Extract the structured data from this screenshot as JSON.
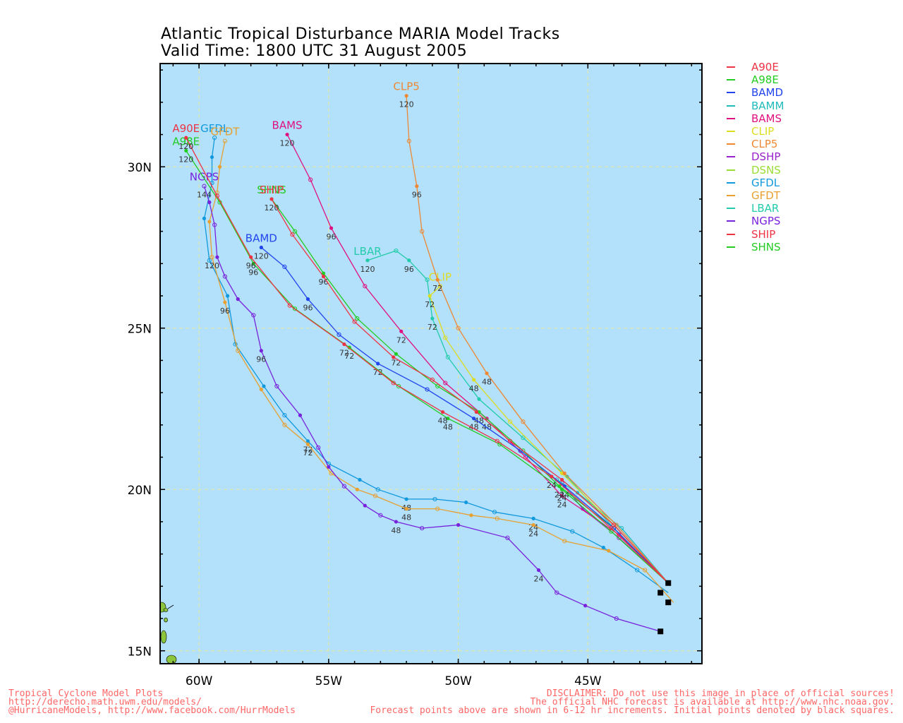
{
  "title": {
    "line1": "Atlantic Tropical Disturbance MARIA Model Tracks",
    "line2": "Valid Time: 1800 UTC 31 August 2005"
  },
  "colors": {
    "ocean": "#b3e0fa",
    "land": "#8cc43c",
    "grid": "#e8e8a0",
    "frame": "#000000",
    "footer": "#ff6666"
  },
  "axes": {
    "lon_ticks": [
      "60W",
      "55W",
      "50W",
      "45W"
    ],
    "lat_ticks": [
      "30N",
      "25N",
      "20N",
      "15N"
    ]
  },
  "legend": [
    {
      "name": "A90E",
      "color": "#ee3344"
    },
    {
      "name": "A98E",
      "color": "#22cc22"
    },
    {
      "name": "BAMD",
      "color": "#2244ee"
    },
    {
      "name": "BAMM",
      "color": "#22bbbb"
    },
    {
      "name": "BAMS",
      "color": "#e01080"
    },
    {
      "name": "CLIP",
      "color": "#dddd22"
    },
    {
      "name": "CLP5",
      "color": "#ee8833"
    },
    {
      "name": "DSHP",
      "color": "#9922cc"
    },
    {
      "name": "DSNS",
      "color": "#99dd33"
    },
    {
      "name": "GFDL",
      "color": "#1199dd"
    },
    {
      "name": "GFDT",
      "color": "#e8a030"
    },
    {
      "name": "LBAR",
      "color": "#22ccaa"
    },
    {
      "name": "NGPS",
      "color": "#7722dd"
    },
    {
      "name": "SHIP",
      "color": "#ee3344"
    },
    {
      "name": "SHNS",
      "color": "#22cc22"
    }
  ],
  "tracks": [
    {
      "name": "GFDL",
      "color": "#1199dd",
      "label": "GFDL",
      "points": [
        [
          41.9,
          16.8
        ],
        [
          43.1,
          17.5
        ],
        [
          44.4,
          18.2
        ],
        [
          45.6,
          18.7
        ],
        [
          47.1,
          19.1
        ],
        [
          48.6,
          19.3
        ],
        [
          49.7,
          19.6
        ],
        [
          50.9,
          19.7
        ],
        [
          52.0,
          19.7
        ],
        [
          53.1,
          20.0
        ],
        [
          53.8,
          20.3
        ],
        [
          55.0,
          20.8
        ],
        [
          55.8,
          21.5
        ],
        [
          56.7,
          22.3
        ],
        [
          57.5,
          23.2
        ],
        [
          58.6,
          24.5
        ],
        [
          58.9,
          26.0
        ],
        [
          59.6,
          27.1
        ],
        [
          59.8,
          28.4
        ],
        [
          59.5,
          29.5
        ],
        [
          59.5,
          30.3
        ],
        [
          59.4,
          30.9
        ]
      ],
      "hours": [
        {
          "i": 4,
          "h": "24"
        },
        {
          "i": 8,
          "h": "48"
        },
        {
          "i": 12,
          "h": "72"
        }
      ]
    },
    {
      "name": "GFDT",
      "color": "#e8a030",
      "label": "GFDT",
      "points": [
        [
          41.7,
          16.5
        ],
        [
          42.8,
          17.5
        ],
        [
          44.2,
          18.1
        ],
        [
          45.9,
          18.4
        ],
        [
          47.1,
          18.9
        ],
        [
          48.5,
          19.1
        ],
        [
          49.5,
          19.2
        ],
        [
          50.8,
          19.4
        ],
        [
          52.0,
          19.4
        ],
        [
          53.2,
          19.8
        ],
        [
          53.9,
          20.0
        ],
        [
          54.9,
          20.5
        ],
        [
          55.8,
          21.4
        ],
        [
          56.7,
          22.0
        ],
        [
          57.6,
          23.1
        ],
        [
          58.5,
          24.3
        ],
        [
          59.0,
          25.8
        ],
        [
          59.5,
          27.2
        ],
        [
          59.6,
          28.3
        ],
        [
          59.3,
          29.2
        ],
        [
          59.2,
          30.0
        ],
        [
          59.0,
          30.8
        ]
      ],
      "hours": [
        {
          "i": 4,
          "h": "24"
        },
        {
          "i": 8,
          "h": "48"
        },
        {
          "i": 12,
          "h": "72"
        },
        {
          "i": 16,
          "h": "96"
        },
        {
          "i": 17,
          "h": "120"
        }
      ]
    },
    {
      "name": "NGPS",
      "color": "#7722dd",
      "label": "NGPS",
      "points": [
        [
          42.2,
          15.6
        ],
        [
          43.9,
          16.0
        ],
        [
          45.1,
          16.4
        ],
        [
          46.2,
          16.8
        ],
        [
          46.9,
          17.5
        ],
        [
          48.1,
          18.5
        ],
        [
          50.0,
          18.9
        ],
        [
          51.4,
          18.8
        ],
        [
          52.4,
          19.0
        ],
        [
          53.0,
          19.2
        ],
        [
          53.6,
          19.5
        ],
        [
          54.4,
          20.1
        ],
        [
          55.0,
          20.7
        ],
        [
          55.4,
          21.3
        ],
        [
          56.1,
          22.3
        ],
        [
          57.0,
          23.2
        ],
        [
          57.6,
          24.3
        ],
        [
          57.9,
          25.4
        ],
        [
          58.5,
          25.9
        ],
        [
          59.0,
          26.6
        ],
        [
          59.3,
          27.2
        ],
        [
          59.4,
          28.2
        ],
        [
          59.6,
          28.9
        ],
        [
          59.8,
          29.4
        ]
      ],
      "hours": [
        {
          "i": 4,
          "h": "24"
        },
        {
          "i": 8,
          "h": "48"
        },
        {
          "i": 16,
          "h": "96"
        },
        {
          "i": 23,
          "h": "144"
        }
      ]
    },
    {
      "name": "DSHP",
      "color": "#9922cc",
      "label": "",
      "points": [
        [
          41.9,
          17.1
        ],
        [
          43.8,
          18.5
        ],
        [
          45.2,
          19.4
        ],
        [
          46.0,
          20.2
        ],
        [
          46.4,
          20.4
        ]
      ],
      "hours": []
    },
    {
      "name": "BAMM",
      "color": "#22bbbb",
      "label": "",
      "points": [
        [
          41.9,
          17.1
        ],
        [
          43.7,
          18.8
        ],
        [
          45.4,
          19.9
        ],
        [
          46.2,
          20.3
        ]
      ],
      "hours": []
    },
    {
      "name": "LBAR",
      "color": "#22ccaa",
      "label": "LBAR",
      "points": [
        [
          41.9,
          17.1
        ],
        [
          44.0,
          18.8
        ],
        [
          45.8,
          20.4
        ],
        [
          47.5,
          21.6
        ],
        [
          49.2,
          22.8
        ],
        [
          50.4,
          24.1
        ],
        [
          51.0,
          25.3
        ],
        [
          51.2,
          26.5
        ],
        [
          51.9,
          27.1
        ],
        [
          52.4,
          27.4
        ],
        [
          53.5,
          27.1
        ]
      ],
      "hours": [
        {
          "i": 6,
          "h": "72"
        },
        {
          "i": 8,
          "h": "96"
        },
        {
          "i": 10,
          "h": "120"
        }
      ]
    },
    {
      "name": "CLIP",
      "color": "#dddd22",
      "label": "CLIP",
      "points": [
        [
          41.9,
          17.1
        ],
        [
          44.0,
          18.9
        ],
        [
          46.0,
          20.5
        ],
        [
          48.0,
          22.1
        ],
        [
          49.4,
          23.4
        ],
        [
          50.5,
          24.7
        ],
        [
          51.1,
          26.0
        ],
        [
          50.7,
          26.3
        ]
      ],
      "hours": [
        {
          "i": 4,
          "h": "48"
        },
        {
          "i": 6,
          "h": "72"
        }
      ]
    },
    {
      "name": "CLP5",
      "color": "#ee8833",
      "label": "CLP5",
      "points": [
        [
          41.9,
          17.1
        ],
        [
          43.9,
          18.9
        ],
        [
          45.9,
          20.5
        ],
        [
          47.5,
          22.1
        ],
        [
          48.9,
          23.6
        ],
        [
          50.0,
          25.0
        ],
        [
          50.8,
          26.5
        ],
        [
          51.4,
          28.0
        ],
        [
          51.6,
          29.4
        ],
        [
          51.9,
          30.8
        ],
        [
          52.0,
          32.2
        ]
      ],
      "hours": [
        {
          "i": 4,
          "h": "48"
        },
        {
          "i": 6,
          "h": "72"
        },
        {
          "i": 8,
          "h": "96"
        },
        {
          "i": 10,
          "h": "120"
        }
      ]
    },
    {
      "name": "BAMS",
      "color": "#e01080",
      "label": "BAMS",
      "points": [
        [
          41.9,
          17.1
        ],
        [
          43.8,
          18.6
        ],
        [
          46.0,
          19.8
        ],
        [
          47.4,
          21.0
        ],
        [
          48.9,
          22.2
        ],
        [
          50.5,
          23.3
        ],
        [
          52.2,
          24.9
        ],
        [
          53.6,
          26.3
        ],
        [
          54.9,
          28.1
        ],
        [
          55.7,
          29.6
        ],
        [
          56.6,
          31.0
        ]
      ],
      "hours": [
        {
          "i": 2,
          "h": "24"
        },
        {
          "i": 4,
          "h": "48"
        },
        {
          "i": 6,
          "h": "72"
        },
        {
          "i": 8,
          "h": "96"
        },
        {
          "i": 10,
          "h": "120"
        }
      ]
    },
    {
      "name": "SHNS",
      "color": "#22cc22",
      "label": "SHNS",
      "points": [
        [
          41.9,
          17.1
        ],
        [
          44.0,
          18.8
        ],
        [
          46.1,
          20.1
        ],
        [
          47.5,
          21.2
        ],
        [
          49.2,
          22.4
        ],
        [
          50.8,
          23.2
        ],
        [
          52.4,
          24.2
        ],
        [
          53.9,
          25.3
        ],
        [
          55.2,
          26.7
        ],
        [
          56.3,
          28.0
        ],
        [
          57.2,
          29.0
        ]
      ],
      "hours": [
        {
          "i": 2,
          "h": "24"
        },
        {
          "i": 4,
          "h": "48"
        },
        {
          "i": 6,
          "h": "72"
        },
        {
          "i": 8,
          "h": "96"
        },
        {
          "i": 10,
          "h": "120"
        }
      ]
    },
    {
      "name": "BAMD",
      "color": "#2244ee",
      "label": "BAMD",
      "points": [
        [
          41.9,
          17.1
        ],
        [
          44.0,
          18.8
        ],
        [
          45.9,
          20.1
        ],
        [
          47.6,
          21.2
        ],
        [
          49.4,
          22.2
        ],
        [
          51.2,
          23.1
        ],
        [
          53.1,
          23.9
        ],
        [
          54.6,
          24.8
        ],
        [
          55.8,
          25.9
        ],
        [
          56.7,
          26.9
        ],
        [
          57.6,
          27.5
        ]
      ],
      "hours": [
        {
          "i": 2,
          "h": "24"
        },
        {
          "i": 4,
          "h": "48"
        },
        {
          "i": 6,
          "h": "72"
        },
        {
          "i": 8,
          "h": "96"
        },
        {
          "i": 10,
          "h": "120"
        }
      ]
    },
    {
      "name": "A98E",
      "color": "#22cc22",
      "label": "A98E",
      "points": [
        [
          41.9,
          17.1
        ],
        [
          44.1,
          18.7
        ],
        [
          46.0,
          20.0
        ],
        [
          48.4,
          21.4
        ],
        [
          50.4,
          22.2
        ],
        [
          52.3,
          23.2
        ],
        [
          54.2,
          24.4
        ],
        [
          56.3,
          25.6
        ],
        [
          57.9,
          27.0
        ],
        [
          59.2,
          28.9
        ],
        [
          60.5,
          30.5
        ]
      ],
      "hours": [
        {
          "i": 2,
          "h": "24"
        },
        {
          "i": 4,
          "h": "48"
        },
        {
          "i": 6,
          "h": "72"
        },
        {
          "i": 8,
          "h": "96"
        },
        {
          "i": 10,
          "h": "120"
        }
      ]
    },
    {
      "name": "A90E",
      "color": "#ee3344",
      "label": "A90E",
      "points": [
        [
          41.9,
          17.1
        ],
        [
          44.1,
          18.8
        ],
        [
          46.4,
          20.4
        ],
        [
          48.5,
          21.5
        ],
        [
          50.6,
          22.4
        ],
        [
          52.5,
          23.3
        ],
        [
          54.4,
          24.5
        ],
        [
          56.5,
          25.7
        ],
        [
          58.0,
          27.2
        ],
        [
          59.3,
          29.1
        ],
        [
          60.5,
          30.9
        ]
      ],
      "hours": [
        {
          "i": 2,
          "h": "24"
        },
        {
          "i": 4,
          "h": "48"
        },
        {
          "i": 6,
          "h": "72"
        },
        {
          "i": 8,
          "h": "96"
        },
        {
          "i": 10,
          "h": "120"
        }
      ]
    },
    {
      "name": "SHIP",
      "color": "#ee3344",
      "label": "SHIP",
      "points": [
        [
          41.9,
          17.1
        ],
        [
          44.0,
          18.9
        ],
        [
          46.0,
          20.3
        ],
        [
          48.0,
          21.5
        ],
        [
          49.3,
          22.4
        ],
        [
          51.0,
          23.4
        ],
        [
          52.5,
          24.1
        ],
        [
          54.0,
          25.2
        ],
        [
          55.2,
          26.6
        ],
        [
          56.4,
          27.9
        ],
        [
          57.2,
          29.0
        ]
      ],
      "hours": []
    }
  ],
  "initial_points": [
    [
      41.9,
      17.1
    ],
    [
      41.9,
      16.5
    ],
    [
      42.2,
      16.8
    ],
    [
      42.2,
      15.6
    ]
  ],
  "footer": {
    "left1": "Tropical Cyclone Model Plots",
    "left2": "http://derecho.math.uwm.edu/models/",
    "left3": "@HurricaneModels, http://www.facebook.com/HurrModels",
    "right1": "DISCLAIMER: Do not use this image in place of official sources!",
    "right2": "The official NHC forecast is available at http://www.nhc.noaa.gov.",
    "right3": "Forecast points above are shown in 6-12 hr increments. Initial points denoted by black squares."
  }
}
